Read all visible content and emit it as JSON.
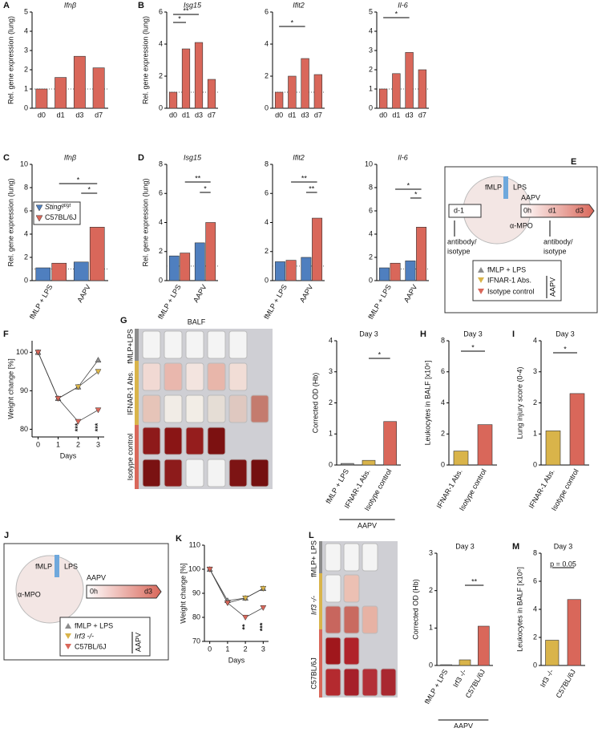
{
  "chart_data": [
    {
      "panel": "A",
      "type": "bar",
      "title": "Ifnβ",
      "ylabel": "Rel. gene expression (lung)",
      "categories": [
        "d0",
        "d1",
        "d3",
        "d7"
      ],
      "values": [
        1,
        1.6,
        2.7,
        2.1
      ],
      "color": "#d9675a",
      "ylim": [
        0,
        5
      ],
      "yticks": [
        0,
        1,
        2,
        3,
        4,
        5
      ],
      "reference_line": 1
    },
    {
      "panel": "B",
      "type": "bar",
      "title": "Isg15",
      "ylabel": "Rel. gene expression (lung)",
      "categories": [
        "d0",
        "d1",
        "d3",
        "d7"
      ],
      "values": [
        1,
        3.7,
        4.1,
        1.8
      ],
      "color": "#d9675a",
      "ylim": [
        0,
        6
      ],
      "yticks": [
        0,
        2,
        4,
        6
      ],
      "reference_line": 1,
      "annotations": [
        "*",
        "**"
      ]
    },
    {
      "type": "bar",
      "title": "Ifit2",
      "categories": [
        "d0",
        "d1",
        "d3",
        "d7"
      ],
      "values": [
        1,
        2,
        3.1,
        2.1
      ],
      "color": "#d9675a",
      "ylim": [
        0,
        6
      ],
      "yticks": [
        0,
        2,
        4,
        6
      ],
      "reference_line": 1,
      "annotations": [
        "*"
      ]
    },
    {
      "type": "bar",
      "title": "Il-6",
      "categories": [
        "d0",
        "d1",
        "d3",
        "d7"
      ],
      "values": [
        1,
        1.8,
        2.9,
        2
      ],
      "color": "#d9675a",
      "ylim": [
        0,
        5
      ],
      "yticks": [
        0,
        1,
        2,
        3,
        4,
        5
      ],
      "reference_line": 1,
      "annotations": [
        "*"
      ]
    },
    {
      "panel": "C",
      "type": "grouped-bar",
      "title": "Ifnβ",
      "ylabel": "Rel. gene expression (lung)",
      "categories": [
        "fMLP + LPS",
        "AAPV"
      ],
      "series": [
        {
          "name": "Sting",
          "superscript": "gt/gt",
          "color": "#4f7fbf",
          "values": [
            1.1,
            1.6
          ]
        },
        {
          "name": "C57BL/6J",
          "color": "#d9675a",
          "values": [
            1.5,
            4.6
          ]
        }
      ],
      "ylim": [
        0,
        10
      ],
      "yticks": [
        0,
        2,
        4,
        6,
        8,
        10
      ],
      "reference_line": 1,
      "annotations": [
        "*",
        "*"
      ]
    },
    {
      "panel": "D",
      "type": "grouped-bar",
      "title": "Isg15",
      "ylabel": "Rel. gene expression (lung)",
      "categories": [
        "fMLP + LPS",
        "AAPV"
      ],
      "series": [
        {
          "color": "#4f7fbf",
          "values": [
            1.7,
            2.6
          ]
        },
        {
          "color": "#d9675a",
          "values": [
            1.9,
            4
          ]
        }
      ],
      "ylim": [
        0,
        8
      ],
      "yticks": [
        0,
        2,
        4,
        6,
        8
      ],
      "reference_line": 1,
      "annotations": [
        "**",
        "*"
      ]
    },
    {
      "type": "grouped-bar",
      "title": "Ifit2",
      "categories": [
        "fMLP + LPS",
        "AAPV"
      ],
      "series": [
        {
          "color": "#4f7fbf",
          "values": [
            1.3,
            1.6
          ]
        },
        {
          "color": "#d9675a",
          "values": [
            1.4,
            4.3
          ]
        }
      ],
      "ylim": [
        0,
        8
      ],
      "yticks": [
        0,
        2,
        4,
        6,
        8
      ],
      "reference_line": 1,
      "annotations": [
        "**",
        "**"
      ]
    },
    {
      "type": "grouped-bar",
      "title": "Il-6",
      "categories": [
        "fMLP + LPS",
        "AAPV"
      ],
      "series": [
        {
          "color": "#4f7fbf",
          "values": [
            1.1,
            1.7
          ]
        },
        {
          "color": "#d9675a",
          "values": [
            1.5,
            4.6
          ]
        }
      ],
      "ylim": [
        0,
        10
      ],
      "yticks": [
        0,
        2,
        4,
        6,
        8,
        10
      ],
      "reference_line": 1,
      "annotations": [
        "*",
        "*"
      ]
    },
    {
      "panel": "F",
      "type": "line",
      "ylabel": "Weight change [%]",
      "xlabel": "Days",
      "x": [
        0,
        1,
        2,
        3
      ],
      "series": [
        {
          "color": "#8c8c8c",
          "values": [
            100,
            88,
            91,
            98
          ]
        },
        {
          "color": "#d9b44a",
          "values": [
            100,
            88,
            91,
            95
          ]
        },
        {
          "color": "#d9675a",
          "values": [
            100,
            88,
            82,
            85
          ]
        }
      ],
      "xlim": [
        -0.3,
        3.3
      ],
      "xticks": [
        0,
        1,
        2,
        3
      ],
      "ylim": [
        78,
        103
      ],
      "yticks": [
        80,
        90,
        100
      ],
      "annotations": [
        "***",
        "***"
      ]
    },
    {
      "type": "bar",
      "title": "Day 3",
      "ylabel": "Corrected OD (Hb)",
      "categories": [
        "fMLP + LPS",
        "IFNAR-1 Abs.",
        "Isotype control"
      ],
      "values": [
        0.05,
        0.15,
        1.4
      ],
      "colors": [
        "#8c8c8c",
        "#d9b44a",
        "#d9675a"
      ],
      "ylim": [
        0,
        4
      ],
      "yticks": [
        0,
        1,
        2,
        3,
        4
      ],
      "group_label": "AAPV",
      "annotations": [
        "*"
      ]
    },
    {
      "panel": "H",
      "type": "bar",
      "title": "Day 3",
      "ylabel": "Leukocytes in BALF [x10⁶]",
      "categories": [
        "IFNAR-1 Abs.",
        "Isotype control"
      ],
      "values": [
        0.9,
        2.6
      ],
      "colors": [
        "#d9b44a",
        "#d9675a"
      ],
      "ylim": [
        0,
        8
      ],
      "yticks": [
        0,
        2,
        4,
        6,
        8
      ],
      "annotations": [
        "*"
      ]
    },
    {
      "panel": "I",
      "type": "bar",
      "title": "Day 3",
      "ylabel": "Lung injury score (0-4)",
      "categories": [
        "IFNAR-1 Abs.",
        "Isotype control"
      ],
      "values": [
        1.1,
        2.3
      ],
      "colors": [
        "#d9b44a",
        "#d9675a"
      ],
      "ylim": [
        0,
        4
      ],
      "yticks": [
        0,
        1,
        2,
        3,
        4
      ],
      "annotations": [
        "*"
      ]
    },
    {
      "panel": "K",
      "type": "line",
      "ylabel": "Weight change [%]",
      "xlabel": "Days",
      "x": [
        0,
        1,
        2,
        3
      ],
      "series": [
        {
          "color": "#8c8c8c",
          "values": [
            100,
            87,
            88,
            92
          ]
        },
        {
          "color": "#d9b44a",
          "values": [
            100,
            86,
            88,
            92
          ]
        },
        {
          "color": "#d9675a",
          "values": [
            100,
            86,
            80,
            84
          ]
        }
      ],
      "xlim": [
        -0.3,
        3.3
      ],
      "xticks": [
        0,
        1,
        2,
        3
      ],
      "ylim": [
        70,
        110
      ],
      "yticks": [
        70,
        80,
        90,
        100,
        110
      ],
      "annotations": [
        "**",
        "***"
      ]
    },
    {
      "type": "bar",
      "title": "Day 3",
      "ylabel": "Corrected OD (Hb)",
      "categories": [
        "fMLP + LPS",
        "Irf3 -/-",
        "C57BL/6J"
      ],
      "values": [
        0.02,
        0.15,
        1.05
      ],
      "colors": [
        "#8c8c8c",
        "#d9b44a",
        "#d9675a"
      ],
      "ylim": [
        0,
        3
      ],
      "yticks": [
        0,
        1,
        2,
        3
      ],
      "group_label": "AAPV",
      "annotations": [
        "**"
      ]
    },
    {
      "panel": "M",
      "type": "bar",
      "title": "Day 3",
      "ylabel": "Leukocytes in BALF [x10⁶]",
      "categories": [
        "Irf3 -/-",
        "C57BL/6J"
      ],
      "values": [
        1.8,
        4.7
      ],
      "colors": [
        "#d9b44a",
        "#d9675a"
      ],
      "ylim": [
        0,
        8
      ],
      "yticks": [
        0,
        2,
        4,
        6,
        8
      ],
      "annotations": [
        "p = 0.05"
      ]
    }
  ],
  "diagrams": [
    {
      "panel": "E",
      "labels": [
        "fMLP",
        "LPS",
        "α-MPO",
        "AAPV",
        "d-1",
        "0h",
        "d1",
        "d3",
        "antibody/",
        "isotype",
        "antibody/",
        "isotype"
      ],
      "legend": [
        "fMLP + LPS",
        "IFNAR-1 Abs.",
        "Isotype control",
        "AAPV"
      ]
    },
    {
      "panel": "J",
      "labels": [
        "fMLP",
        "LPS",
        "α-MPO",
        "AAPV",
        "0h",
        "d3"
      ],
      "legend": [
        "fMLP + LPS",
        "Irf3 -/-",
        "C57BL/6J",
        "AAPV"
      ]
    }
  ],
  "photos": [
    {
      "panel": "G",
      "title": "BALF",
      "rows": [
        "fMLP+LPS",
        "IFNAR-1 Abs.",
        "Isotype control"
      ]
    },
    {
      "panel": "L",
      "rows": [
        "fMLP+ LPS",
        "Irf3 -/-",
        "C57BL/6J"
      ]
    }
  ]
}
